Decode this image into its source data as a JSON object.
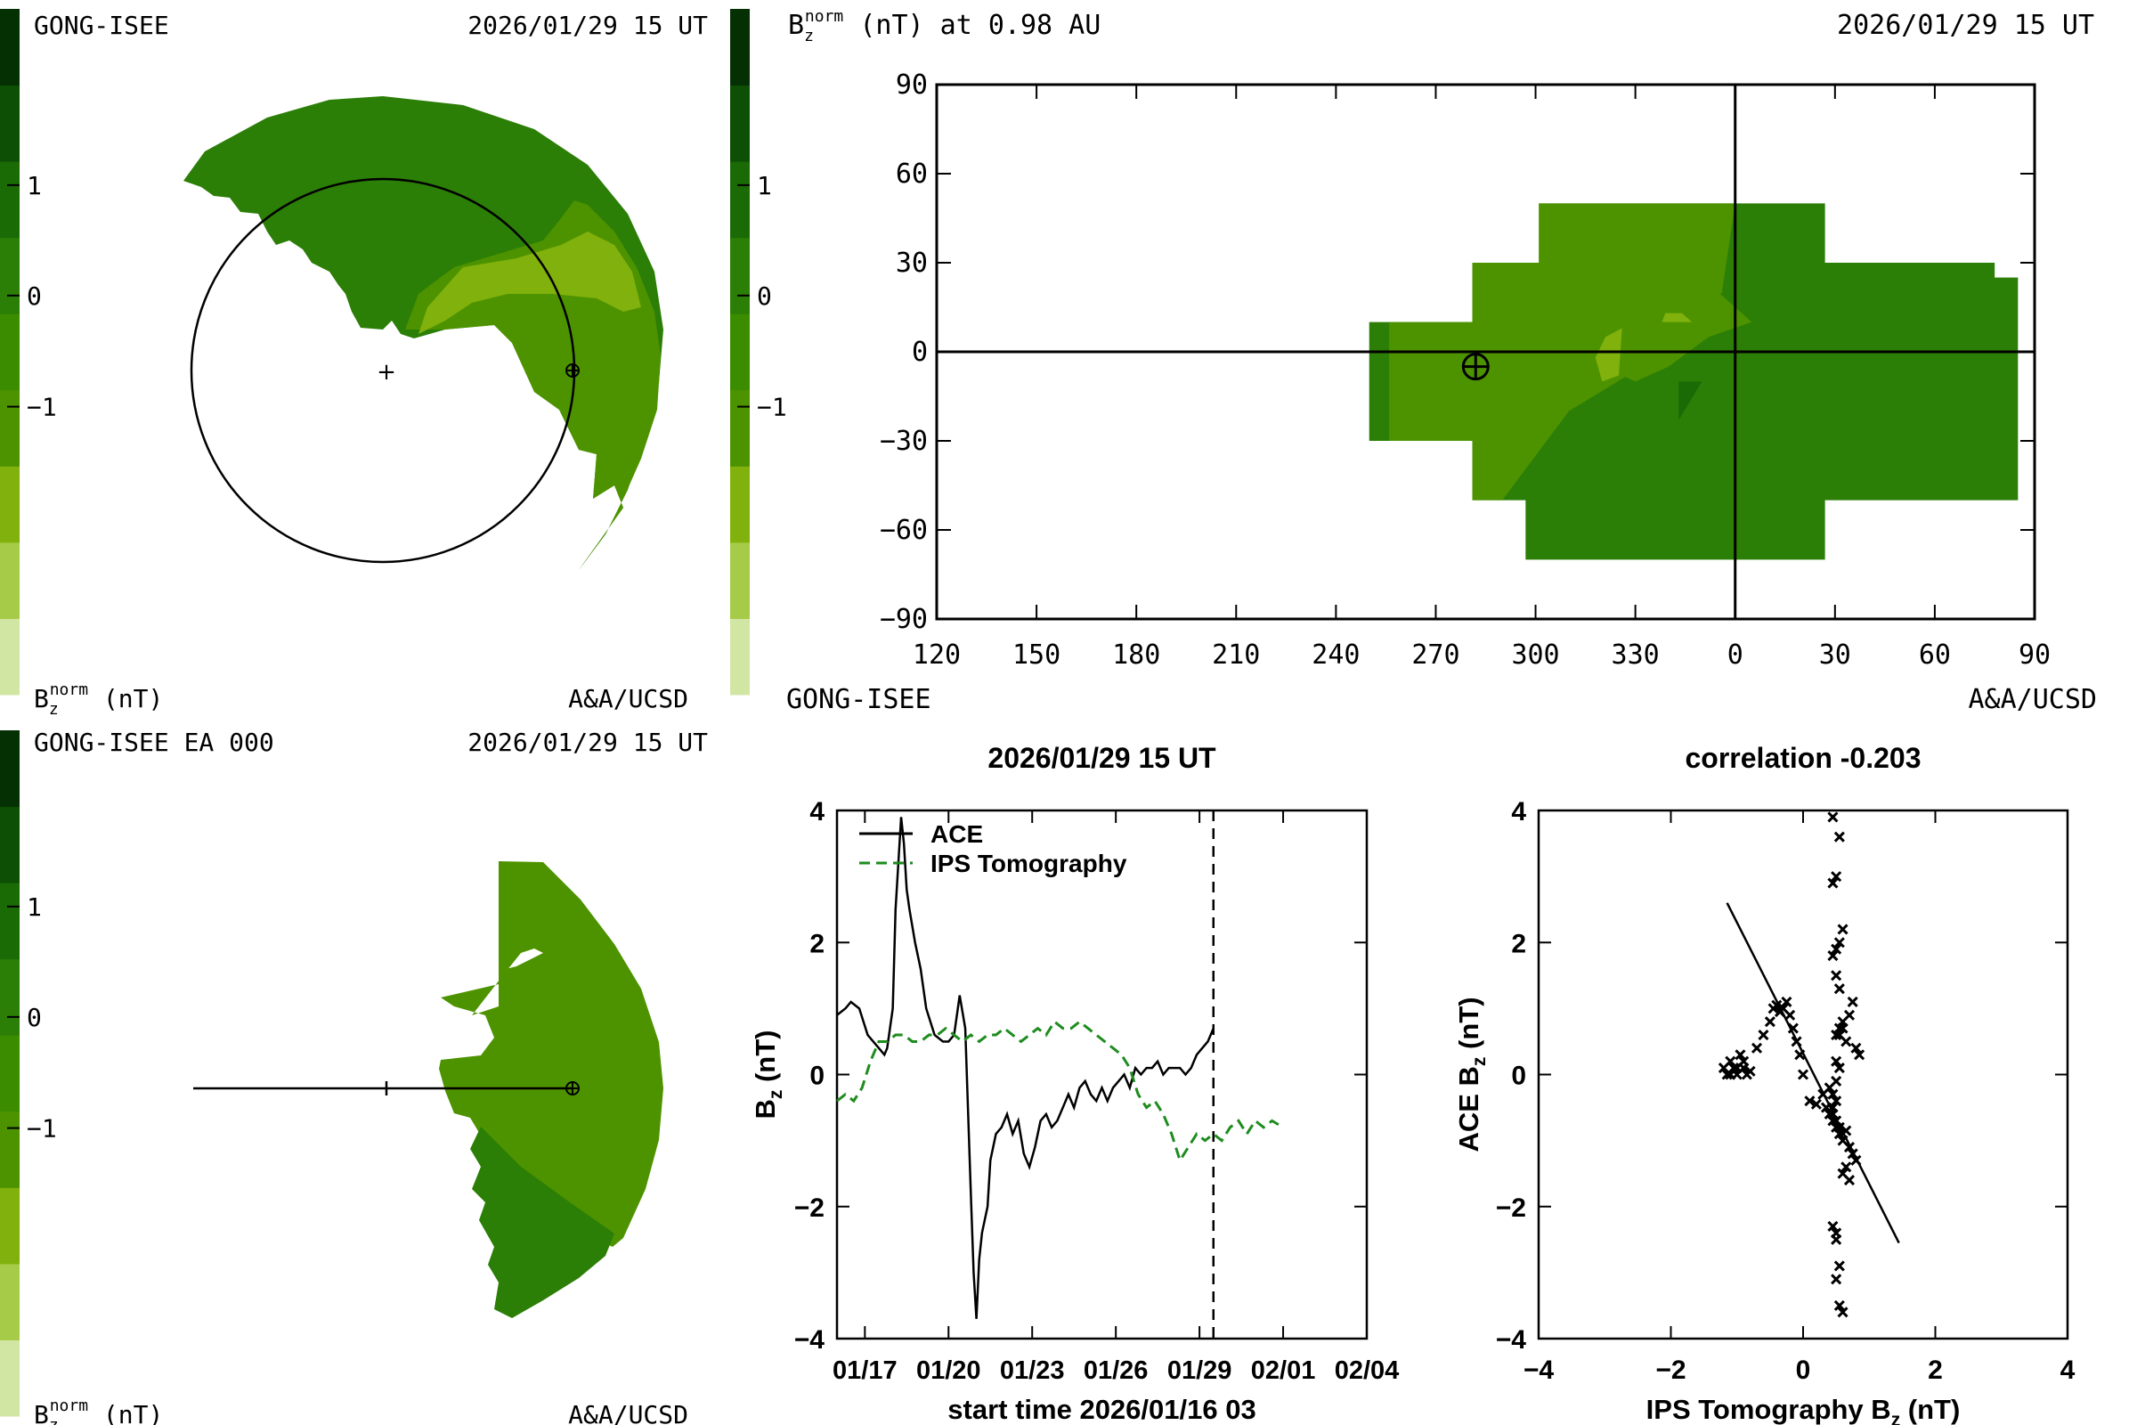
{
  "colorbar": {
    "colors": [
      "#d2e6a4",
      "#a6cb48",
      "#80b10c",
      "#4d9300",
      "#3c8c00",
      "#2b7e06",
      "#1a6a06",
      "#0d4f05",
      "#043003"
    ],
    "tick_labels": [
      "1",
      "0",
      "−1"
    ]
  },
  "panel_tl": {
    "source": "GONG-ISEE",
    "timestamp": "2026/01/29 15 UT",
    "units": "B",
    "units_sub": "z",
    "units_sup": "norm",
    "units_tail": " (nT)",
    "credit": "A&A/UCSD"
  },
  "panel_tr": {
    "heading_main": "B",
    "heading_sub": "z",
    "heading_sup": "norm",
    "heading_tail": " (nT) at 0.98 AU",
    "timestamp": "2026/01/29 15 UT",
    "source": "GONG-ISEE",
    "credit": "A&A/UCSD"
  },
  "panel_bl": {
    "source": "GONG-ISEE EA 000",
    "timestamp": "2026/01/29 15 UT",
    "units": "B",
    "units_sub": "z",
    "units_sup": "norm",
    "units_tail": " (nT)",
    "credit": "A&A/UCSD"
  },
  "chart_data": [
    {
      "id": "synoptic_map",
      "type": "heatmap",
      "title": "Bz norm (nT) at 0.98 AU",
      "x_tick_labels": [
        "120",
        "150",
        "180",
        "210",
        "240",
        "270",
        "300",
        "330",
        "0",
        "30",
        "60",
        "90"
      ],
      "y_tick_labels": [
        "90",
        "60",
        "30",
        "0",
        "−30",
        "−60",
        "−90"
      ],
      "y_ticks": [
        90,
        60,
        30,
        0,
        -30,
        -60,
        -90
      ],
      "ylim": [
        -90,
        90
      ],
      "x_range_label": "Carrington-like longitude 120 to 450 (wraps at 360 to 0)",
      "earth_marker": {
        "lon": 282,
        "lat": -5
      }
    },
    {
      "id": "time_series",
      "type": "line",
      "title": "2026/01/29 15 UT",
      "xlabel": "start time 2026/01/16 03",
      "ylabel_main": "B",
      "ylabel_sub": "z",
      "ylabel_tail": " (nT)",
      "x_tick_labels": [
        "01/17",
        "01/20",
        "01/23",
        "01/26",
        "01/29",
        "02/01",
        "02/04"
      ],
      "x_tick_days": [
        1,
        4,
        7,
        10,
        13,
        16,
        19
      ],
      "xlim": [
        0,
        19
      ],
      "ylim": [
        -4,
        4
      ],
      "y_ticks": [
        -4,
        -2,
        0,
        2,
        4
      ],
      "current_time_day": 13.5,
      "series": [
        {
          "name": "ACE",
          "color": "#000000",
          "dash": "solid",
          "x": [
            0.0,
            0.3,
            0.5,
            0.8,
            1.1,
            1.3,
            1.5,
            1.7,
            1.8,
            2.0,
            2.1,
            2.3,
            2.4,
            2.5,
            2.6,
            2.8,
            3.0,
            3.2,
            3.5,
            3.8,
            4.0,
            4.2,
            4.3,
            4.4,
            4.6,
            4.8,
            4.9,
            5.0,
            5.1,
            5.2,
            5.4,
            5.5,
            5.7,
            5.9,
            6.1,
            6.3,
            6.5,
            6.7,
            6.9,
            7.1,
            7.3,
            7.5,
            7.7,
            7.9,
            8.1,
            8.3,
            8.5,
            8.7,
            8.9,
            9.1,
            9.3,
            9.5,
            9.7,
            9.9,
            10.1,
            10.3,
            10.5,
            10.7,
            10.9,
            11.1,
            11.3,
            11.5,
            11.7,
            11.9,
            12.1,
            12.3,
            12.5,
            12.7,
            12.9,
            13.1,
            13.3,
            13.5
          ],
          "values": [
            0.9,
            1.0,
            1.1,
            1.0,
            0.6,
            0.5,
            0.4,
            0.3,
            0.4,
            1.0,
            2.5,
            3.9,
            3.5,
            2.8,
            2.5,
            2.0,
            1.6,
            1.0,
            0.6,
            0.5,
            0.5,
            0.6,
            0.9,
            1.2,
            0.7,
            -1.8,
            -3.0,
            -3.7,
            -2.8,
            -2.4,
            -2.0,
            -1.3,
            -0.9,
            -0.8,
            -0.6,
            -0.9,
            -0.7,
            -1.2,
            -1.4,
            -1.1,
            -0.7,
            -0.6,
            -0.8,
            -0.7,
            -0.5,
            -0.3,
            -0.5,
            -0.2,
            -0.1,
            -0.3,
            -0.4,
            -0.2,
            -0.4,
            -0.2,
            -0.1,
            0.0,
            -0.2,
            0.1,
            0.0,
            0.1,
            0.1,
            0.2,
            0.0,
            0.1,
            0.1,
            0.1,
            0.0,
            0.1,
            0.3,
            0.4,
            0.5,
            0.7
          ]
        },
        {
          "name": "IPS Tomography",
          "color": "#1e8c1e",
          "dash": "dashed",
          "x": [
            0.0,
            0.3,
            0.6,
            0.9,
            1.2,
            1.5,
            1.8,
            2.1,
            2.4,
            2.7,
            3.0,
            3.3,
            3.6,
            3.9,
            4.2,
            4.5,
            4.8,
            5.1,
            5.4,
            5.7,
            6.0,
            6.3,
            6.6,
            6.9,
            7.2,
            7.5,
            7.8,
            8.1,
            8.4,
            8.7,
            9.0,
            9.3,
            9.6,
            9.9,
            10.2,
            10.5,
            10.8,
            11.1,
            11.4,
            11.7,
            12.0,
            12.3,
            12.6,
            12.9,
            13.2,
            13.5,
            13.8,
            14.1,
            14.4,
            14.7,
            15.0,
            15.3,
            15.6,
            16.0
          ],
          "values": [
            -0.4,
            -0.3,
            -0.4,
            -0.2,
            0.2,
            0.5,
            0.5,
            0.6,
            0.6,
            0.5,
            0.5,
            0.6,
            0.6,
            0.7,
            0.6,
            0.5,
            0.6,
            0.5,
            0.6,
            0.6,
            0.7,
            0.6,
            0.5,
            0.6,
            0.7,
            0.6,
            0.8,
            0.7,
            0.7,
            0.8,
            0.7,
            0.6,
            0.5,
            0.4,
            0.3,
            0.1,
            -0.3,
            -0.5,
            -0.4,
            -0.6,
            -0.9,
            -1.3,
            -1.1,
            -0.9,
            -1.0,
            -0.9,
            -1.0,
            -0.8,
            -0.7,
            -0.9,
            -0.7,
            -0.8,
            -0.7,
            -0.8
          ]
        }
      ]
    },
    {
      "id": "scatter",
      "type": "scatter",
      "title": "correlation -0.203",
      "xlabel_main": "IPS Tomography B",
      "xlabel_sub": "z",
      "xlabel_tail": " (nT)",
      "ylabel_main": "ACE B",
      "ylabel_sub": "z",
      "ylabel_tail": " (nT)",
      "xlim": [
        -4,
        4
      ],
      "ylim": [
        -4,
        4
      ],
      "x_ticks": [
        -4,
        -2,
        0,
        2,
        4
      ],
      "y_ticks": [
        -4,
        -2,
        0,
        2,
        4
      ],
      "x_tick_labels": [
        "−4",
        "−2",
        "0",
        "2",
        "4"
      ],
      "y_tick_labels": [
        "−4",
        "−2",
        "0",
        "2",
        "4"
      ],
      "fit_line": {
        "x": [
          -1.15,
          1.45
        ],
        "y": [
          2.6,
          -2.55
        ]
      },
      "points": {
        "x": [
          -1.2,
          -1.15,
          -1.1,
          -1.05,
          -1.0,
          -0.95,
          -0.9,
          -0.85,
          -0.8,
          -1.1,
          -1.0,
          -0.9,
          -0.7,
          -0.6,
          -0.5,
          -0.45,
          -0.4,
          -0.35,
          -0.3,
          -0.25,
          -0.2,
          -0.15,
          -0.1,
          -0.05,
          0.0,
          0.1,
          0.2,
          0.3,
          0.35,
          0.4,
          0.45,
          0.5,
          0.55,
          0.6,
          0.65,
          0.7,
          0.75,
          0.8,
          0.5,
          0.55,
          0.6,
          0.65,
          0.7,
          0.75,
          0.8,
          0.85,
          0.45,
          0.5,
          0.55,
          0.6,
          0.45,
          0.5,
          0.55,
          0.45,
          0.5,
          0.55,
          0.4,
          0.45,
          0.5,
          0.55,
          0.45,
          0.5,
          0.5,
          0.55,
          0.5,
          0.55,
          0.6,
          0.45,
          0.5,
          0.55,
          0.6,
          0.65,
          0.7,
          0.5,
          0.55,
          0.6,
          0.45,
          0.5
        ],
        "y": [
          0.1,
          0.0,
          0.2,
          0.1,
          0.0,
          0.3,
          0.1,
          0.0,
          0.05,
          0.0,
          0.1,
          0.2,
          0.4,
          0.6,
          0.8,
          1.0,
          1.05,
          0.95,
          1.0,
          1.1,
          0.9,
          0.7,
          0.5,
          0.3,
          0.0,
          -0.4,
          -0.45,
          -0.3,
          -0.5,
          -0.6,
          -0.7,
          -0.8,
          -0.9,
          -1.0,
          -0.85,
          -1.1,
          -1.2,
          -1.3,
          0.6,
          0.7,
          0.8,
          0.5,
          0.9,
          1.1,
          0.4,
          0.3,
          1.8,
          1.9,
          2.0,
          2.2,
          2.9,
          3.0,
          3.6,
          3.9,
          1.5,
          1.3,
          -0.2,
          -0.3,
          -0.1,
          0.1,
          -2.3,
          -2.4,
          -2.5,
          -2.9,
          -3.1,
          -3.5,
          -3.6,
          -0.6,
          -0.7,
          -0.8,
          -1.5,
          -1.4,
          -1.6,
          0.2,
          0.6,
          0.7,
          -0.5,
          -0.4
        ]
      }
    }
  ]
}
